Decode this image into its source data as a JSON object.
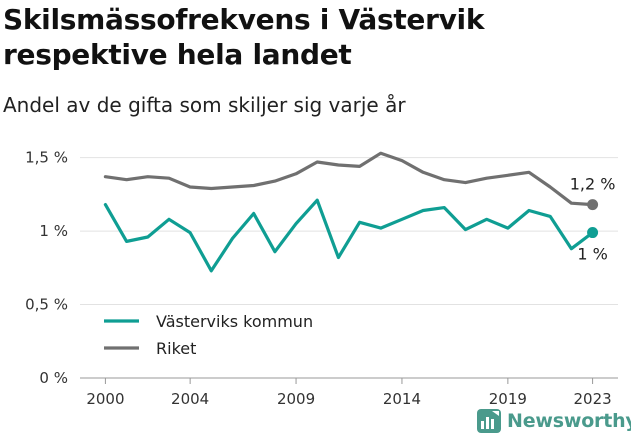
{
  "title": "Skilsmässofrekvens i Västervik respektive hela landet",
  "subtitle": "Andel av de gifta som skiljer sig varje år",
  "brand": "Newsworthy",
  "chart_data": {
    "type": "line",
    "x": [
      2000,
      2001,
      2002,
      2003,
      2004,
      2005,
      2006,
      2007,
      2008,
      2009,
      2010,
      2011,
      2012,
      2013,
      2014,
      2015,
      2016,
      2017,
      2018,
      2019,
      2020,
      2021,
      2022,
      2023
    ],
    "x_ticks": [
      2000,
      2004,
      2009,
      2014,
      2019,
      2023
    ],
    "y_ticks": [
      0,
      0.5,
      1,
      1.5
    ],
    "y_tick_labels": [
      "0 %",
      "0,5 %",
      "1 %",
      "1,5 %"
    ],
    "ylim": [
      0,
      1.62
    ],
    "xlim": [
      1998.8,
      2024.2
    ],
    "grid": "horizontal",
    "legend_position": "bottom-left",
    "series": [
      {
        "name": "Västerviks kommun",
        "color": "#0f9e93",
        "end_label": "1 %",
        "values": [
          1.18,
          0.93,
          0.96,
          1.08,
          0.99,
          0.73,
          0.95,
          1.12,
          0.86,
          1.05,
          1.21,
          0.82,
          1.06,
          1.02,
          1.08,
          1.14,
          1.16,
          1.01,
          1.08,
          1.02,
          1.14,
          1.1,
          0.88,
          0.99
        ]
      },
      {
        "name": "Riket",
        "color": "#707070",
        "end_label": "1,2 %",
        "values": [
          1.37,
          1.35,
          1.37,
          1.36,
          1.3,
          1.29,
          1.3,
          1.31,
          1.34,
          1.39,
          1.47,
          1.45,
          1.44,
          1.53,
          1.48,
          1.4,
          1.35,
          1.33,
          1.36,
          1.38,
          1.4,
          1.3,
          1.19,
          1.18
        ]
      }
    ]
  }
}
